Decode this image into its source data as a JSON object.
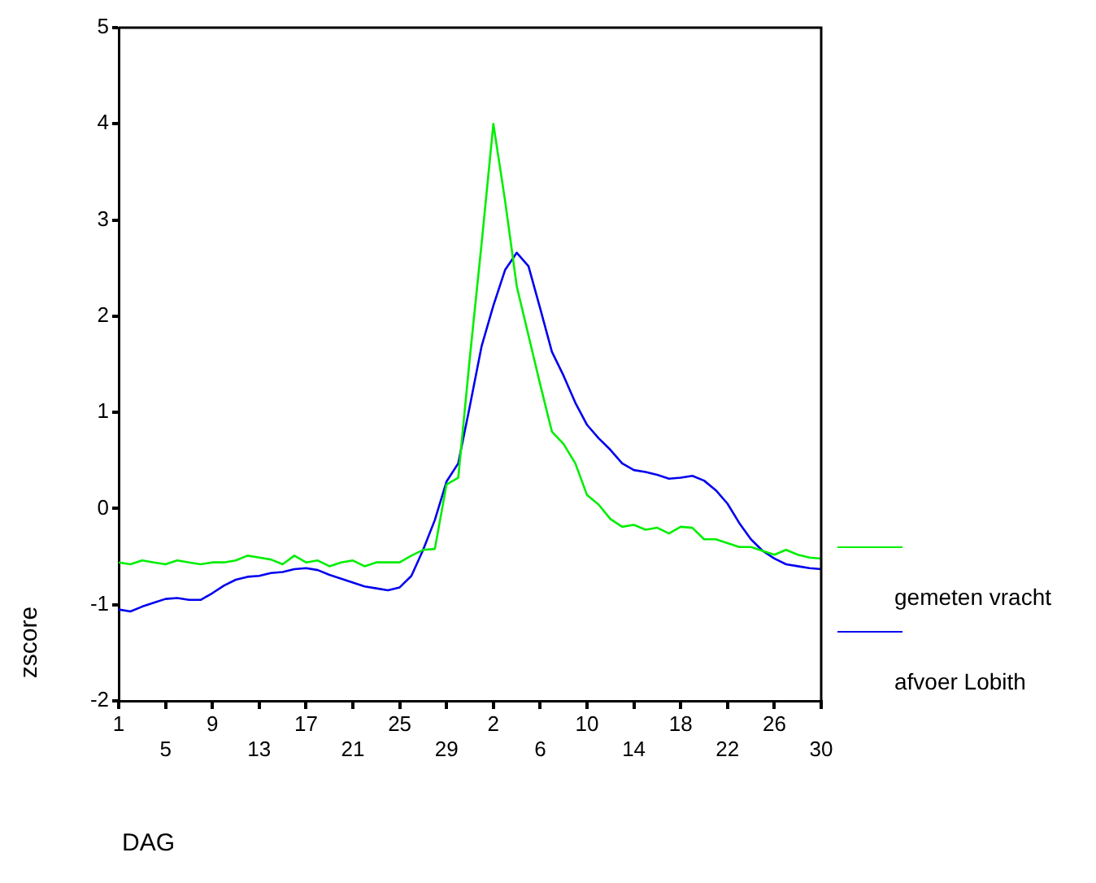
{
  "chart_data": {
    "type": "line",
    "xlabel": "DAG",
    "ylabel": "zscore",
    "categories": [
      "1",
      null,
      null,
      null,
      "5",
      null,
      null,
      null,
      "9",
      null,
      null,
      null,
      "13",
      null,
      null,
      null,
      "17",
      null,
      null,
      null,
      "21",
      null,
      null,
      null,
      "25",
      null,
      null,
      null,
      "29",
      null,
      null,
      null,
      "2",
      null,
      null,
      null,
      "6",
      null,
      null,
      null,
      "10",
      null,
      null,
      null,
      "14",
      null,
      null,
      null,
      "18",
      null,
      null,
      null,
      "22",
      null,
      null,
      null,
      "26",
      null,
      null,
      null,
      "30"
    ],
    "series": [
      {
        "name": "gemeten vracht",
        "color": "#00ee00",
        "values": [
          -0.56,
          -0.58,
          -0.54,
          -0.56,
          -0.58,
          -0.54,
          -0.56,
          -0.58,
          -0.56,
          -0.56,
          -0.54,
          -0.49,
          -0.51,
          -0.53,
          -0.58,
          -0.49,
          -0.56,
          -0.54,
          -0.6,
          -0.56,
          -0.54,
          -0.6,
          -0.56,
          -0.56,
          -0.56,
          -0.49,
          -0.43,
          -0.42,
          0.25,
          0.32,
          1.58,
          2.76,
          4.0,
          3.2,
          2.31,
          1.8,
          1.29,
          0.8,
          0.67,
          0.47,
          0.14,
          0.04,
          -0.11,
          -0.19,
          -0.17,
          -0.22,
          -0.2,
          -0.26,
          -0.19,
          -0.2,
          -0.32,
          -0.32,
          -0.36,
          -0.4,
          -0.4,
          -0.44,
          -0.48,
          -0.43,
          -0.48,
          -0.51,
          -0.52
        ]
      },
      {
        "name": "afvoer Lobith",
        "color": "#0000ee",
        "values": [
          -1.05,
          -1.07,
          -1.02,
          -0.98,
          -0.94,
          -0.93,
          -0.95,
          -0.95,
          -0.88,
          -0.8,
          -0.74,
          -0.71,
          -0.7,
          -0.67,
          -0.66,
          -0.63,
          -0.62,
          -0.64,
          -0.69,
          -0.73,
          -0.77,
          -0.81,
          -0.83,
          -0.85,
          -0.82,
          -0.7,
          -0.43,
          -0.12,
          0.28,
          0.47,
          1.07,
          1.69,
          2.11,
          2.48,
          2.66,
          2.52,
          2.08,
          1.63,
          1.38,
          1.1,
          0.87,
          0.73,
          0.61,
          0.47,
          0.4,
          0.38,
          0.35,
          0.31,
          0.32,
          0.34,
          0.29,
          0.19,
          0.05,
          -0.15,
          -0.32,
          -0.44,
          -0.52,
          -0.58,
          -0.6,
          -0.62,
          -0.63
        ]
      }
    ],
    "ylim": [
      -2,
      5
    ],
    "yticks": [
      -2,
      -1,
      0,
      1,
      2,
      3,
      4,
      5
    ],
    "grid": false,
    "legend": "right",
    "marker": "none",
    "line_style": "solid"
  }
}
